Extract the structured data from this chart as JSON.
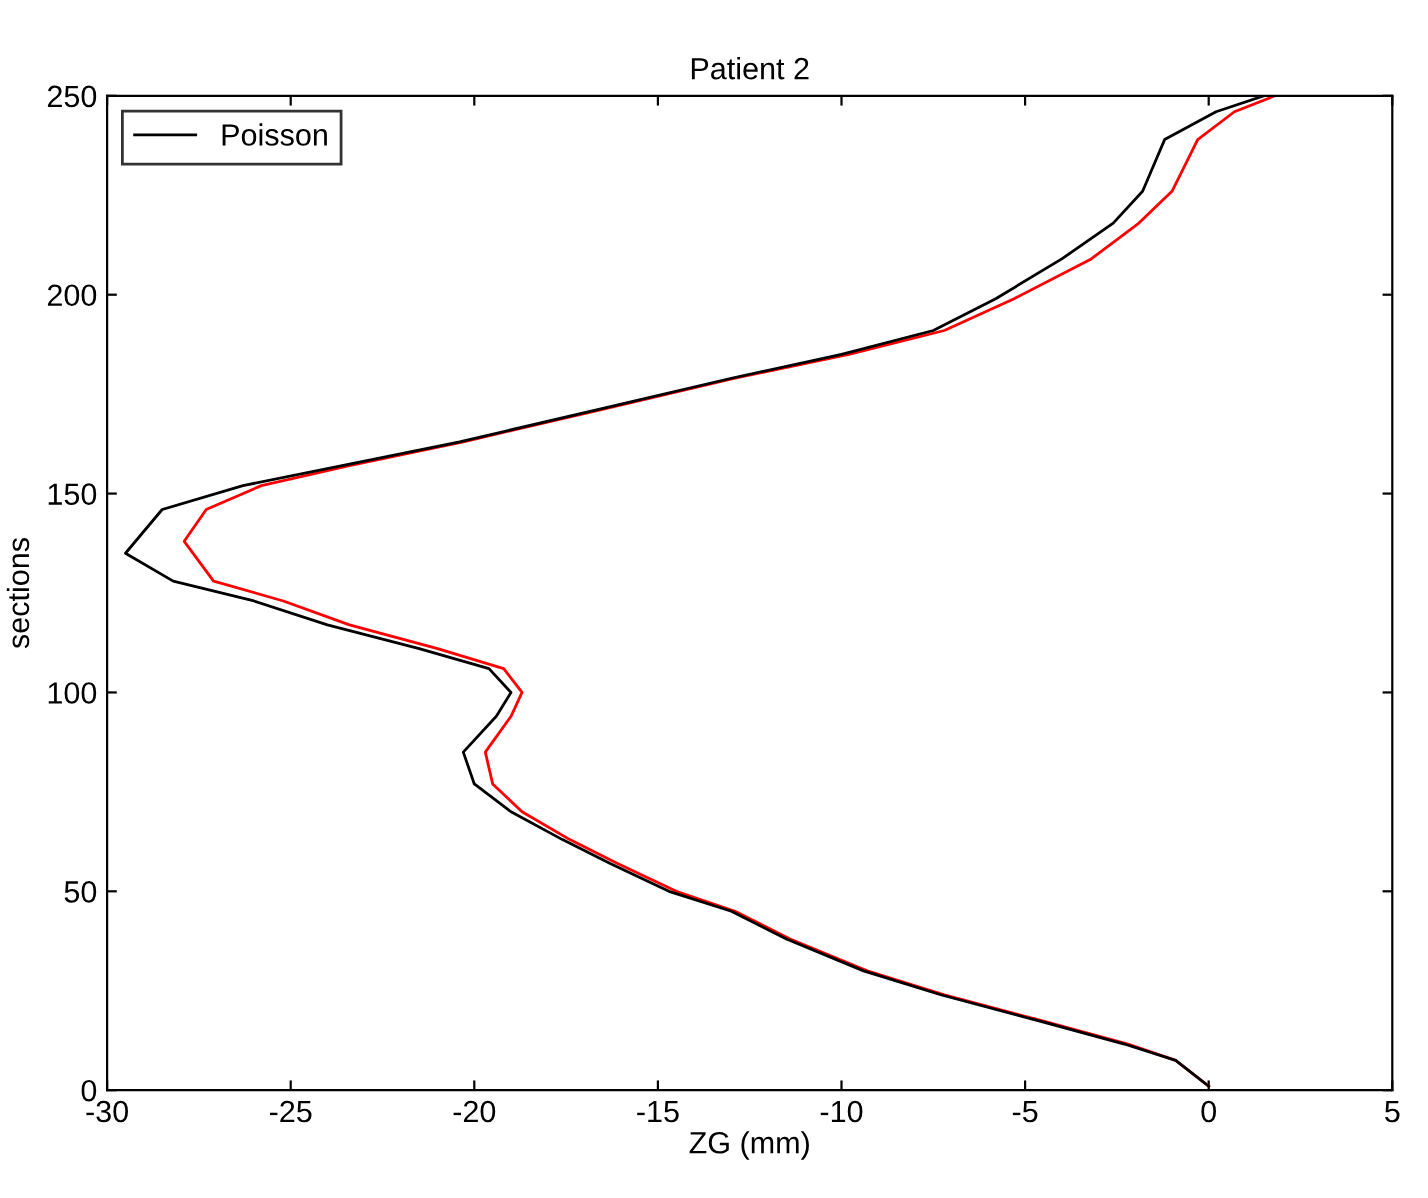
{
  "chart_data": {
    "type": "line",
    "title": "Patient 2",
    "xlabel": "ZG (mm)",
    "ylabel": "sections",
    "xlim": [
      -30,
      5
    ],
    "ylim": [
      0,
      250
    ],
    "xticks": [
      -30,
      -25,
      -20,
      -15,
      -10,
      -5,
      0,
      5
    ],
    "yticks": [
      0,
      50,
      100,
      150,
      200,
      250
    ],
    "grid": false,
    "legend": "top left",
    "series": [
      {
        "color": "#ff0000",
        "x": [
          0,
          -0.9,
          -2.2,
          -4.6,
          -7.2,
          -9.3,
          -11.4,
          -12.9,
          -14.5,
          -16.1,
          -17.4,
          -18.7,
          -19.5,
          -19.7,
          -19.0,
          -18.7,
          -19.2,
          -21.0,
          -23.4,
          -25.2,
          -27.1,
          -27.9,
          -27.3,
          -25.8,
          -23.4,
          -20.3,
          -16.6,
          -12.9,
          -9.8,
          -7.2,
          -5.3,
          -3.2,
          -1.9,
          -1.0,
          -0.3,
          0.7,
          1.8
        ],
        "values": [
          1,
          7.5,
          11.6,
          17.6,
          24,
          30,
          38,
          45,
          50,
          57,
          63,
          70,
          77,
          85,
          94,
          100,
          106,
          111,
          117,
          123,
          128,
          138,
          146,
          152,
          157,
          163,
          171,
          179,
          185,
          191,
          199,
          209,
          218,
          226,
          239,
          246,
          250
        ]
      },
      {
        "name": "Poisson",
        "color": "#000000",
        "x": [
          0,
          -0.9,
          -2.3,
          -4.7,
          -7.3,
          -9.4,
          -11.5,
          -13.0,
          -14.7,
          -16.3,
          -17.6,
          -19.0,
          -20.0,
          -20.3,
          -19.4,
          -19.0,
          -19.6,
          -21.5,
          -24.0,
          -26.0,
          -28.2,
          -29.5,
          -28.5,
          -26.3,
          -23.6,
          -20.4,
          -16.7,
          -13.0,
          -10.0,
          -7.5,
          -5.8,
          -4.0,
          -2.6,
          -1.8,
          -1.2,
          0.2,
          1.5
        ],
        "values": [
          1,
          7.5,
          11.6,
          17.6,
          24,
          30,
          38,
          45,
          50,
          57,
          63,
          70,
          77,
          85,
          94,
          100,
          106,
          111,
          117,
          123,
          128,
          135,
          146,
          152,
          157,
          163,
          171,
          179,
          185,
          191,
          199,
          209,
          218,
          226,
          239,
          246,
          250
        ]
      }
    ]
  }
}
